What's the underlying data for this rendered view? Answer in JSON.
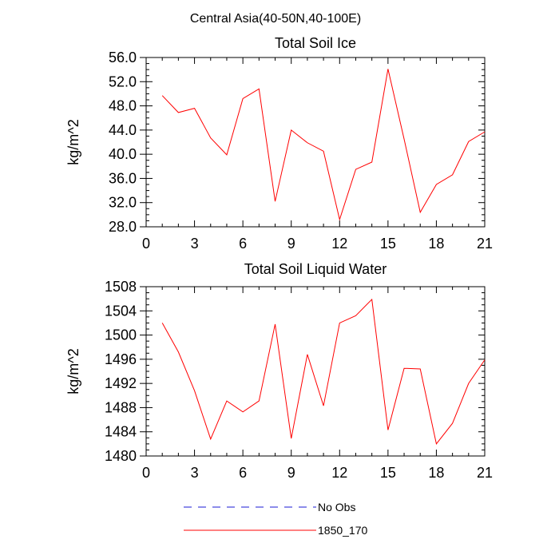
{
  "figure": {
    "title": "Central Asia(40-50N,40-100E)"
  },
  "colors": {
    "model": "#ff0000",
    "obs": "#1a1ad6",
    "axis": "#000000"
  },
  "chart_data": [
    {
      "type": "line",
      "title": "Total Soil Ice",
      "xlabel": "",
      "ylabel": "kg/m^2",
      "xlim": [
        0,
        21
      ],
      "ylim": [
        28.0,
        56.0
      ],
      "xticks": [
        0,
        3,
        6,
        9,
        12,
        15,
        18,
        21
      ],
      "xtick_labels": [
        "0",
        "3",
        "6",
        "9",
        "12",
        "15",
        "18",
        "21"
      ],
      "xminor": 1,
      "yticks": [
        28.0,
        32.0,
        36.0,
        40.0,
        44.0,
        48.0,
        52.0,
        56.0
      ],
      "ytick_labels": [
        "28.0",
        "32.0",
        "36.0",
        "40.0",
        "44.0",
        "48.0",
        "52.0",
        "56.0"
      ],
      "yminor": 1.0,
      "series": [
        {
          "name": "1850_170",
          "color": "#ff0000",
          "x": [
            1,
            2,
            3,
            4,
            5,
            6,
            7,
            8,
            9,
            10,
            11,
            12,
            13,
            14,
            15,
            16,
            17,
            18,
            19,
            20,
            21
          ],
          "y": [
            49.7,
            46.9,
            47.6,
            42.7,
            39.9,
            49.2,
            50.8,
            32.2,
            44.0,
            41.9,
            40.5,
            29.2,
            37.5,
            38.7,
            54.1,
            42.5,
            30.4,
            35.0,
            36.6,
            42.1,
            43.7
          ]
        }
      ]
    },
    {
      "type": "line",
      "title": "Total Soil Liquid Water",
      "xlabel": "",
      "ylabel": "kg/m^2",
      "xlim": [
        0,
        21
      ],
      "ylim": [
        1480,
        1508
      ],
      "xticks": [
        0,
        3,
        6,
        9,
        12,
        15,
        18,
        21
      ],
      "xtick_labels": [
        "0",
        "3",
        "6",
        "9",
        "12",
        "15",
        "18",
        "21"
      ],
      "xminor": 1,
      "yticks": [
        1480,
        1484,
        1488,
        1492,
        1496,
        1500,
        1504,
        1508
      ],
      "ytick_labels": [
        "1480",
        "1484",
        "1488",
        "1492",
        "1496",
        "1500",
        "1504",
        "1508"
      ],
      "yminor": 1,
      "series": [
        {
          "name": "1850_170",
          "color": "#ff0000",
          "x": [
            1,
            2,
            3,
            4,
            5,
            6,
            7,
            8,
            9,
            10,
            11,
            12,
            13,
            14,
            15,
            16,
            17,
            18,
            19,
            20,
            21
          ],
          "y": [
            1502.0,
            1497.2,
            1490.8,
            1482.8,
            1489.1,
            1487.3,
            1489.1,
            1501.8,
            1482.9,
            1496.8,
            1488.3,
            1502.0,
            1503.2,
            1505.9,
            1484.3,
            1494.5,
            1494.4,
            1482.0,
            1485.4,
            1492.0,
            1495.9
          ]
        }
      ]
    }
  ],
  "legend": [
    {
      "label": "No Obs",
      "style": "dashed",
      "color": "#1a1ad6"
    },
    {
      "label": "1850_170",
      "style": "solid",
      "color": "#ff0000"
    }
  ]
}
